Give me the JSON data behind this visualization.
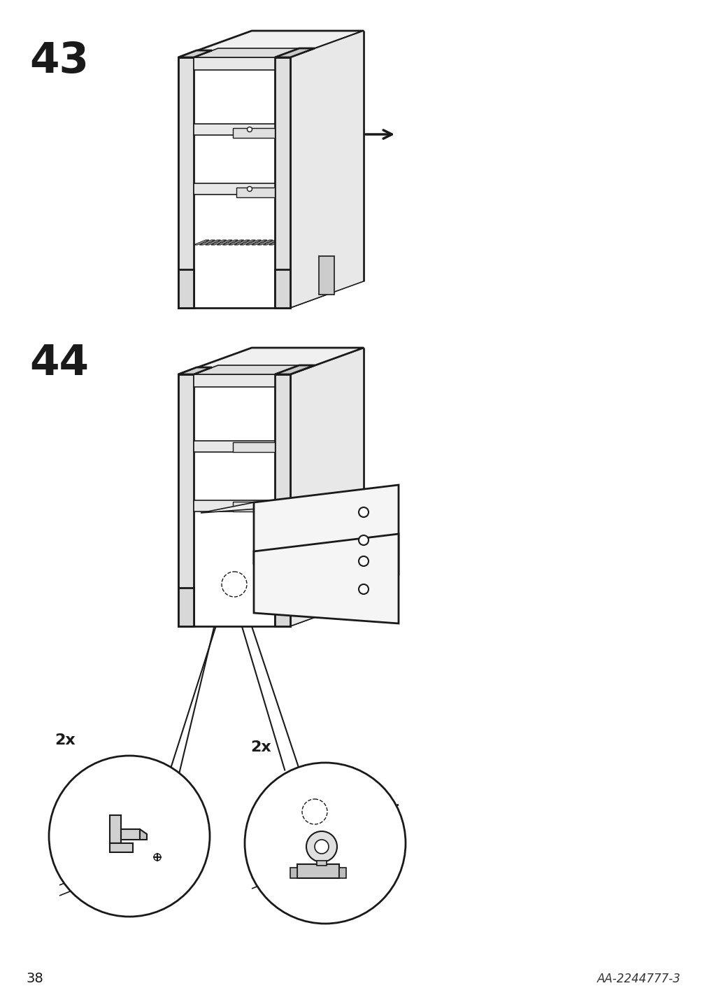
{
  "page_number": "38",
  "article_code": "AA-2244777-3",
  "bg_color": "#ffffff",
  "line_color": "#1a1a1a",
  "step43_label": "43",
  "step44_label": "44",
  "qty_left": "2x",
  "qty_right": "2x"
}
